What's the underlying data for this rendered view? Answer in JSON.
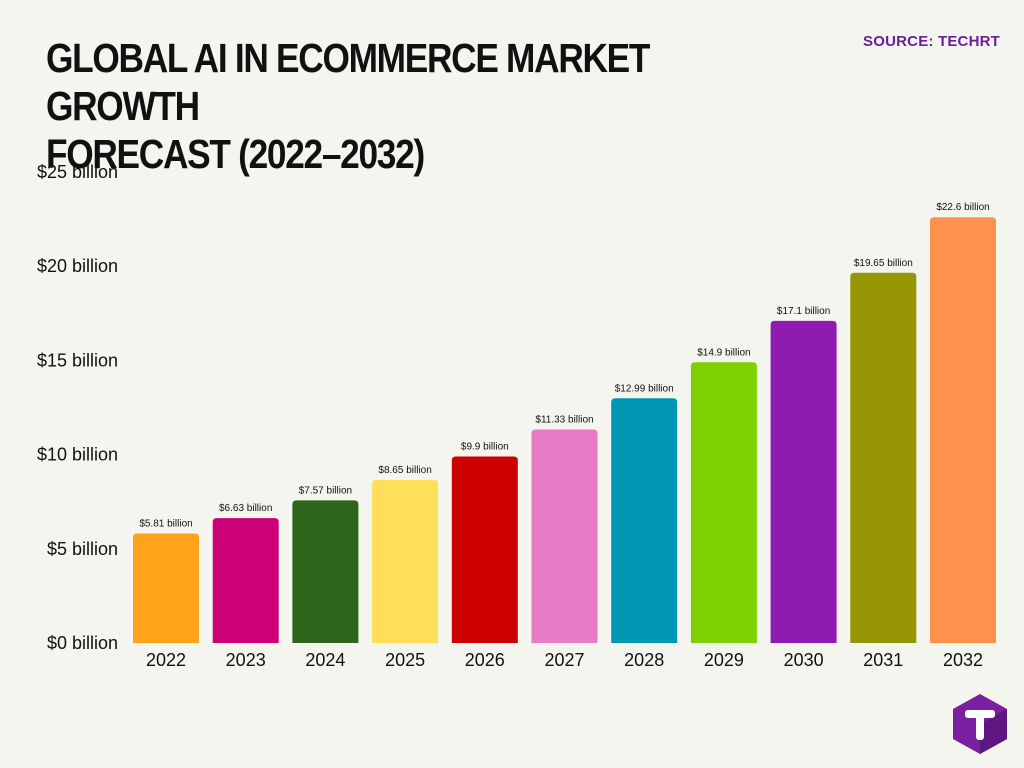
{
  "header": {
    "title_line1": "GLOBAL AI IN ECOMMERCE MARKET GROWTH",
    "title_line2": "FORECAST (2022–2032)",
    "source": "SOURCE: TECHRT"
  },
  "logo": {
    "icon": "t-hexagon-logo-icon",
    "color": "#7a1fa2"
  },
  "chart_data": {
    "type": "bar",
    "title": "GLOBAL AI IN ECOMMERCE MARKET GROWTH FORECAST (2022–2032)",
    "xlabel": "",
    "ylabel": "",
    "categories": [
      "2022",
      "2023",
      "2024",
      "2025",
      "2026",
      "2027",
      "2028",
      "2029",
      "2030",
      "2031",
      "2032"
    ],
    "values": [
      5.81,
      6.63,
      7.57,
      8.65,
      9.9,
      11.33,
      12.99,
      14.9,
      17.1,
      19.65,
      22.6
    ],
    "data_labels": [
      "$5.81 billion",
      "$6.63 billion",
      "$7.57 billion",
      "$8.65 billion",
      "$9.9 billion",
      "$11.33 billion",
      "$12.99 billion",
      "$14.9 billion",
      "$17.1 billion",
      "$19.65 billion",
      "$22.6 billion"
    ],
    "colors": [
      "#ffa31a",
      "#cc0077",
      "#2d661b",
      "#ffde59",
      "#cc0000",
      "#e87bc6",
      "#0097b2",
      "#7ed003",
      "#8e1cb0",
      "#969605",
      "#ff914d"
    ],
    "ylim": [
      0,
      25
    ],
    "yticks": [
      0,
      5,
      10,
      15,
      20,
      25
    ],
    "ytick_labels": [
      "$0 billion",
      "$5 billion",
      "$10 billion",
      "$15 billion",
      "$20 billion",
      "$25 billion"
    ],
    "grid": false,
    "legend": "none"
  }
}
